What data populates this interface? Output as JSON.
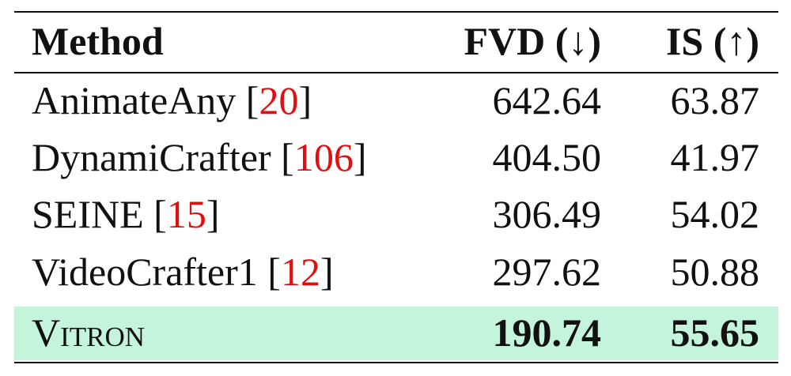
{
  "table": {
    "header": [
      "Method",
      "FVD (↓)",
      "IS (↑)"
    ],
    "rows": [
      {
        "method": "AnimateAny",
        "citation": "[20]",
        "fvd": "642.64",
        "is": "63.87"
      },
      {
        "method": "DynamiCrafter",
        "citation": "[106]",
        "fvd": "404.50",
        "is": "41.97"
      },
      {
        "method": "SEINE",
        "citation": "[15]",
        "fvd": "306.49",
        "is": "54.02"
      },
      {
        "method": "VideoCrafter1",
        "citation": "[12]",
        "fvd": "297.62",
        "is": "50.88"
      },
      {
        "method": "Vitron",
        "fvd": "190.74",
        "is": "55.65",
        "highlight": true
      }
    ]
  }
}
